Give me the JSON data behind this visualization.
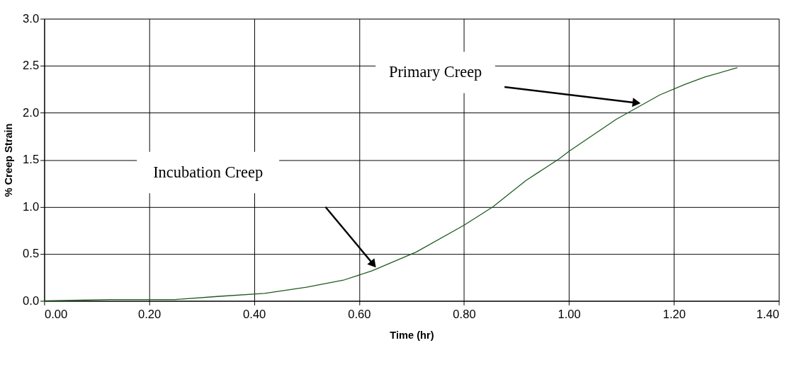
{
  "chart_data": {
    "type": "line",
    "xlabel": "Time (hr)",
    "ylabel": "% Creep Strain",
    "xlim": [
      0,
      1.4
    ],
    "xticks": [
      {
        "value": 0,
        "label": "0.00"
      },
      {
        "value": 0.2,
        "label": "0.20"
      },
      {
        "value": 0.4,
        "label": "0.40"
      },
      {
        "value": 0.6,
        "label": "0.60"
      },
      {
        "value": 0.8,
        "label": "0.80"
      },
      {
        "value": 1.0,
        "label": "1.00"
      },
      {
        "value": 1.2,
        "label": "1.20"
      },
      {
        "value": 1.4,
        "label": "1.40"
      }
    ],
    "ylim": [
      0,
      3
    ],
    "yticks": [
      {
        "value": 0,
        "label": "0.0"
      },
      {
        "value": 0.5,
        "label": "0.5"
      },
      {
        "value": 1.0,
        "label": "1.0"
      },
      {
        "value": 1.5,
        "label": "1.5"
      },
      {
        "value": 2.0,
        "label": "2.0"
      },
      {
        "value": 2.5,
        "label": "2.5"
      },
      {
        "value": 3.0,
        "label": "3.0"
      }
    ],
    "grid": true,
    "marker": "none",
    "line_style": "solid",
    "series": [
      {
        "color": "#1e5a1e",
        "x": [
          0,
          0.125,
          0.25,
          0.33,
          0.42,
          0.5,
          0.57,
          0.625,
          0.709,
          0.8,
          0.855,
          0.918,
          0.981,
          1.0,
          1.09,
          1.173,
          1.22,
          1.259,
          1.321
        ],
        "values": [
          0.0,
          0.015,
          0.015,
          0.047,
          0.08,
          0.145,
          0.22,
          0.32,
          0.52,
          0.805,
          1.0,
          1.28,
          1.51,
          1.59,
          1.93,
          2.19,
          2.3,
          2.38,
          2.48
        ]
      }
    ],
    "annotations": [
      "Incubation Creep",
      "Primary Creep"
    ]
  }
}
